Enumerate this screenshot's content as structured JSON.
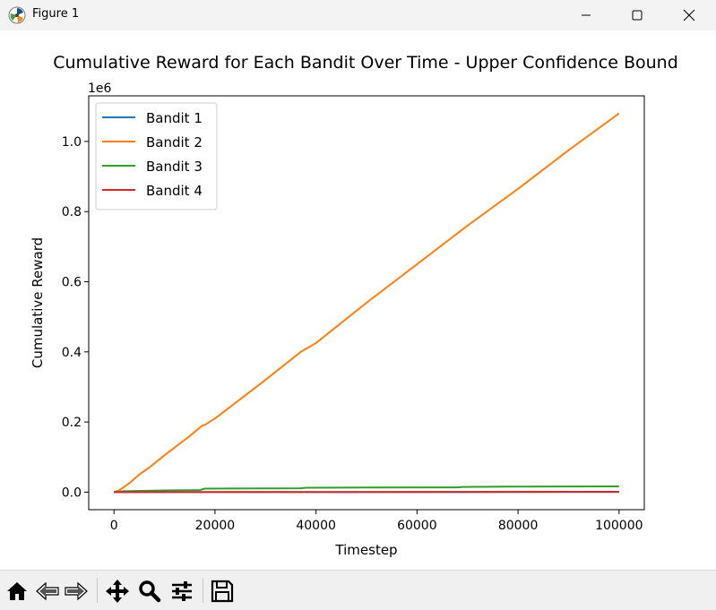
{
  "window": {
    "title": "Figure 1",
    "icon": "matplotlib-logo-icon",
    "controls": [
      "minimize-icon",
      "maximize-icon",
      "close-icon"
    ]
  },
  "toolbar": {
    "buttons": [
      {
        "name": "home",
        "icon": "home-icon"
      },
      {
        "name": "back",
        "icon": "back-arrow-icon"
      },
      {
        "name": "forward",
        "icon": "forward-arrow-icon"
      },
      {
        "name": "pan",
        "icon": "move-icon"
      },
      {
        "name": "zoom",
        "icon": "zoom-icon"
      },
      {
        "name": "configure-subplots",
        "icon": "sliders-icon"
      },
      {
        "name": "save",
        "icon": "save-icon"
      }
    ]
  },
  "chart_data": {
    "type": "line",
    "title": "Cumulative Reward for Each Bandit Over Time - Upper Confidence Bound",
    "xlabel": "Timestep",
    "ylabel": "Cumulative Reward",
    "y_offset_text": "1e6",
    "xlim": [
      -5000,
      105000
    ],
    "ylim": [
      -50000,
      1130000
    ],
    "x_ticks": [
      0,
      20000,
      40000,
      60000,
      80000,
      100000
    ],
    "x_tick_labels": [
      "0",
      "20000",
      "40000",
      "60000",
      "80000",
      "100000"
    ],
    "y_ticks": [
      0,
      200000,
      400000,
      600000,
      800000,
      1000000
    ],
    "y_tick_labels": [
      "0.0",
      "0.2",
      "0.4",
      "0.6",
      "0.8",
      "1.0"
    ],
    "grid": false,
    "legend_position": "upper-left",
    "series": [
      {
        "name": "Bandit 1",
        "color": "#1f77b4",
        "x": [
          0,
          100000
        ],
        "y": [
          0,
          200
        ]
      },
      {
        "name": "Bandit 2",
        "color": "#ff7f0e",
        "x": [
          0,
          1000,
          2000,
          3000,
          5000,
          7000,
          10000,
          15000,
          17500,
          18000,
          20000,
          25000,
          30000,
          37000,
          40000,
          50000,
          60000,
          70000,
          80000,
          90000,
          100000
        ],
        "y": [
          0,
          5000,
          15000,
          25000,
          50000,
          70000,
          105000,
          160000,
          190000,
          192000,
          210000,
          265000,
          320000,
          400000,
          425000,
          540000,
          650000,
          760000,
          865000,
          975000,
          1080000
        ]
      },
      {
        "name": "Bandit 3",
        "color": "#2ca02c",
        "x": [
          0,
          2000,
          10000,
          17000,
          18000,
          37000,
          38000,
          50000,
          68000,
          69000,
          78000,
          100000
        ],
        "y": [
          0,
          2500,
          5000,
          6000,
          10000,
          11000,
          12500,
          13000,
          13500,
          15000,
          16000,
          16500
        ]
      },
      {
        "name": "Bandit 4",
        "color": "#d62728",
        "x": [
          0,
          100000
        ],
        "y": [
          0,
          1200
        ]
      }
    ]
  }
}
